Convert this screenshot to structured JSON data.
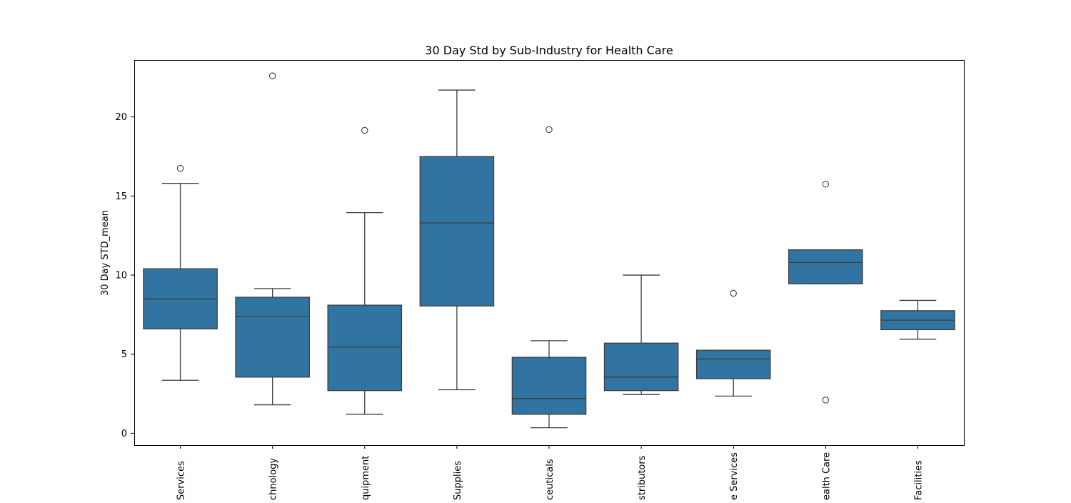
{
  "colors": {
    "box_fill": "#3274a1",
    "line": "#3d3d3d",
    "axes": "#000000",
    "background": "#ffffff"
  },
  "chart_data": {
    "type": "boxplot",
    "title": "30 Day Std by Sub-Industry for Health Care",
    "xlabel": "",
    "ylabel": "30 Day STD_mean",
    "ylim": [
      -0.75,
      23.6
    ],
    "yticks": [
      0,
      5,
      10,
      15,
      20
    ],
    "grid": false,
    "legend": "none",
    "categories": [
      "Health Care Services",
      "Health Care Technology",
      "Health Care Equipment",
      "Health Care Supplies",
      "Pharmaceuticals",
      "Health Care Distributors",
      "Managed Health Care Services",
      "Managed Health Care",
      "Health Care Facilities"
    ],
    "tick_labels_visible": [
      "Services",
      "chnology",
      "quipment",
      "Supplies",
      "ceuticals",
      "stributors",
      "e Services",
      "ealth Care",
      "Facilities"
    ],
    "boxes": [
      {
        "whisker_low": 3.35,
        "q1": 6.6,
        "median": 8.5,
        "q3": 10.4,
        "whisker_high": 15.8,
        "outliers": [
          16.75
        ]
      },
      {
        "whisker_low": 1.8,
        "q1": 3.55,
        "median": 7.4,
        "q3": 8.6,
        "whisker_high": 9.15,
        "outliers": [
          22.6
        ]
      },
      {
        "whisker_low": 1.2,
        "q1": 2.7,
        "median": 5.45,
        "q3": 8.1,
        "whisker_high": 13.95,
        "outliers": [
          19.15
        ]
      },
      {
        "whisker_low": 2.75,
        "q1": 8.05,
        "median": 13.3,
        "q3": 17.5,
        "whisker_high": 21.7,
        "outliers": []
      },
      {
        "whisker_low": 0.35,
        "q1": 1.2,
        "median": 2.2,
        "q3": 4.8,
        "whisker_high": 5.85,
        "outliers": [
          19.2
        ]
      },
      {
        "whisker_low": 2.45,
        "q1": 2.7,
        "median": 3.55,
        "q3": 5.7,
        "whisker_high": 10.0,
        "outliers": []
      },
      {
        "whisker_low": 2.35,
        "q1": 3.45,
        "median": 4.7,
        "q3": 5.25,
        "whisker_high": 5.25,
        "outliers": [
          8.85
        ]
      },
      {
        "whisker_low": 9.45,
        "q1": 9.45,
        "median": 10.8,
        "q3": 11.6,
        "whisker_high": 11.6,
        "outliers": [
          15.75,
          2.1
        ]
      },
      {
        "whisker_low": 5.95,
        "q1": 6.55,
        "median": 7.15,
        "q3": 7.75,
        "whisker_high": 8.4,
        "outliers": []
      }
    ]
  }
}
